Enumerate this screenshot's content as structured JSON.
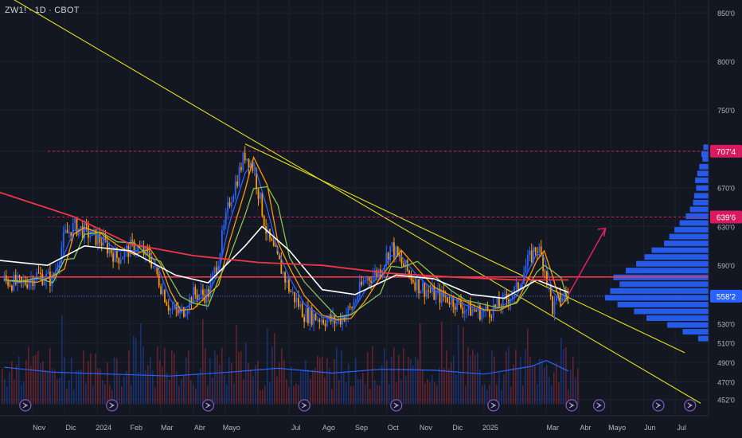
{
  "title": "ZW1! · 1D · CBOT",
  "colors": {
    "background": "#131722",
    "grid": "#1e222d",
    "axis_text": "#b2b5be",
    "ma_fast": "#2962ff",
    "ma_mid": "#ff9800",
    "ma_slow": "#8bc34a",
    "ma_white": "#ffffff",
    "ma_200": "#f23645",
    "trendline": "#e6e01a",
    "candle_up": "#2962ff",
    "candle_down": "#ff9800",
    "marker": "#d81b60",
    "profile": "#2962ff",
    "arrow": "#e91e63",
    "volume_ma": "#2962ff"
  },
  "chart_data": {
    "type": "line",
    "symbol": "ZW1!",
    "interval": "1D",
    "exchange": "CBOT",
    "x_labels": [
      "Nov",
      "Dic",
      "2024",
      "Feb",
      "Mar",
      "Abr",
      "Mayo",
      "Jul",
      "Ago",
      "Sep",
      "Oct",
      "Nov",
      "Dic",
      "2025",
      "Mar",
      "Abr",
      "Mayo",
      "Jun",
      "Jul"
    ],
    "y_ticks": [
      "850'0",
      "800'0",
      "750'0",
      "707'4",
      "670'0",
      "639'6",
      "630'0",
      "590'0",
      "558'2",
      "530'0",
      "510'0",
      "490'0",
      "470'0",
      "452'0"
    ],
    "ylim": [
      445,
      855
    ],
    "price_markers": [
      {
        "label": "707'4",
        "value": 707.5,
        "color": "#d81b60"
      },
      {
        "label": "639'6",
        "value": 639.75,
        "color": "#d81b60"
      },
      {
        "label": "558'2",
        "value": 558.25,
        "color": "#2962ff"
      }
    ],
    "horizontal_line": {
      "value": 578,
      "color": "#f23645"
    },
    "trendlines": [
      {
        "from": [
          "2023-10-01",
          872
        ],
        "to": [
          "2025-07-25",
          448
        ]
      },
      {
        "from": [
          "2024-05-20",
          715
        ],
        "to": [
          "2025-07-10",
          500
        ]
      }
    ],
    "volume_profile": [
      [
        712,
        0.05
      ],
      [
        705,
        0.07
      ],
      [
        700,
        0.06
      ],
      [
        692,
        0.09
      ],
      [
        685,
        0.11
      ],
      [
        678,
        0.13
      ],
      [
        670,
        0.12
      ],
      [
        662,
        0.14
      ],
      [
        655,
        0.15
      ],
      [
        648,
        0.18
      ],
      [
        641,
        0.22
      ],
      [
        634,
        0.28
      ],
      [
        627,
        0.33
      ],
      [
        620,
        0.38
      ],
      [
        613,
        0.43
      ],
      [
        606,
        0.55
      ],
      [
        599,
        0.62
      ],
      [
        592,
        0.7
      ],
      [
        585,
        0.8
      ],
      [
        578,
        0.92
      ],
      [
        571,
        0.86
      ],
      [
        564,
        0.95
      ],
      [
        557,
        1.0
      ],
      [
        550,
        0.88
      ],
      [
        543,
        0.72
      ],
      [
        536,
        0.6
      ],
      [
        529,
        0.4
      ],
      [
        522,
        0.25
      ],
      [
        515,
        0.1
      ]
    ],
    "series": [
      {
        "name": "price",
        "points": [
          [
            "2023-10-05",
            575
          ],
          [
            "2023-10-20",
            570
          ],
          [
            "2023-11-05",
            580
          ],
          [
            "2023-11-20",
            575
          ],
          [
            "2023-12-01",
            620
          ],
          [
            "2023-12-10",
            630
          ],
          [
            "2023-12-20",
            625
          ],
          [
            "2024-01-05",
            615
          ],
          [
            "2024-01-20",
            598
          ],
          [
            "2024-02-05",
            610
          ],
          [
            "2024-02-20",
            598
          ],
          [
            "2024-03-01",
            570
          ],
          [
            "2024-03-10",
            545
          ],
          [
            "2024-03-20",
            540
          ],
          [
            "2024-04-01",
            560
          ],
          [
            "2024-04-15",
            560
          ],
          [
            "2024-04-25",
            600
          ],
          [
            "2024-05-05",
            655
          ],
          [
            "2024-05-20",
            705
          ],
          [
            "2024-05-28",
            690
          ],
          [
            "2024-06-10",
            620
          ],
          [
            "2024-06-20",
            595
          ],
          [
            "2024-07-01",
            565
          ],
          [
            "2024-07-15",
            540
          ],
          [
            "2024-08-01",
            535
          ],
          [
            "2024-08-15",
            532
          ],
          [
            "2024-08-28",
            545
          ],
          [
            "2024-09-10",
            575
          ],
          [
            "2024-09-25",
            585
          ],
          [
            "2024-10-05",
            610
          ],
          [
            "2024-10-15",
            592
          ],
          [
            "2024-10-30",
            570
          ],
          [
            "2024-11-15",
            560
          ],
          [
            "2024-12-01",
            555
          ],
          [
            "2024-12-15",
            545
          ],
          [
            "2025-01-01",
            542
          ],
          [
            "2025-01-15",
            548
          ],
          [
            "2025-02-01",
            565
          ],
          [
            "2025-02-10",
            590
          ],
          [
            "2025-02-20",
            610
          ],
          [
            "2025-02-27",
            590
          ],
          [
            "2025-03-07",
            545
          ],
          [
            "2025-03-15",
            558
          ],
          [
            "2025-03-22",
            560
          ]
        ]
      },
      {
        "name": "ma_200",
        "points": [
          [
            "2023-10-01",
            665
          ],
          [
            "2023-12-10",
            640
          ],
          [
            "2024-02-01",
            612
          ],
          [
            "2024-04-01",
            600
          ],
          [
            "2024-06-01",
            593
          ],
          [
            "2024-08-01",
            590
          ],
          [
            "2024-10-01",
            582
          ],
          [
            "2024-12-01",
            578
          ],
          [
            "2025-02-01",
            575
          ],
          [
            "2025-03-22",
            575
          ]
        ]
      },
      {
        "name": "ma_white",
        "points": [
          [
            "2023-10-01",
            595
          ],
          [
            "2023-11-15",
            590
          ],
          [
            "2023-12-20",
            610
          ],
          [
            "2024-02-01",
            605
          ],
          [
            "2024-03-15",
            580
          ],
          [
            "2024-04-15",
            572
          ],
          [
            "2024-05-20",
            610
          ],
          [
            "2024-06-05",
            630
          ],
          [
            "2024-07-01",
            605
          ],
          [
            "2024-08-01",
            565
          ],
          [
            "2024-09-01",
            560
          ],
          [
            "2024-10-10",
            580
          ],
          [
            "2024-11-15",
            576
          ],
          [
            "2024-12-20",
            560
          ],
          [
            "2025-01-20",
            556
          ],
          [
            "2025-02-20",
            575
          ],
          [
            "2025-03-22",
            562
          ]
        ]
      }
    ],
    "volume_ma": [
      [
        "2023-10-05",
        485
      ],
      [
        "2023-11-20",
        480
      ],
      [
        "2024-01-15",
        478
      ],
      [
        "2024-03-10",
        476
      ],
      [
        "2024-05-05",
        480
      ],
      [
        "2024-06-20",
        484
      ],
      [
        "2024-08-10",
        479
      ],
      [
        "2024-09-25",
        483
      ],
      [
        "2024-11-15",
        482
      ],
      [
        "2025-01-01",
        478
      ],
      [
        "2025-02-15",
        486
      ],
      [
        "2025-03-01",
        492
      ],
      [
        "2025-03-22",
        481
      ]
    ]
  }
}
